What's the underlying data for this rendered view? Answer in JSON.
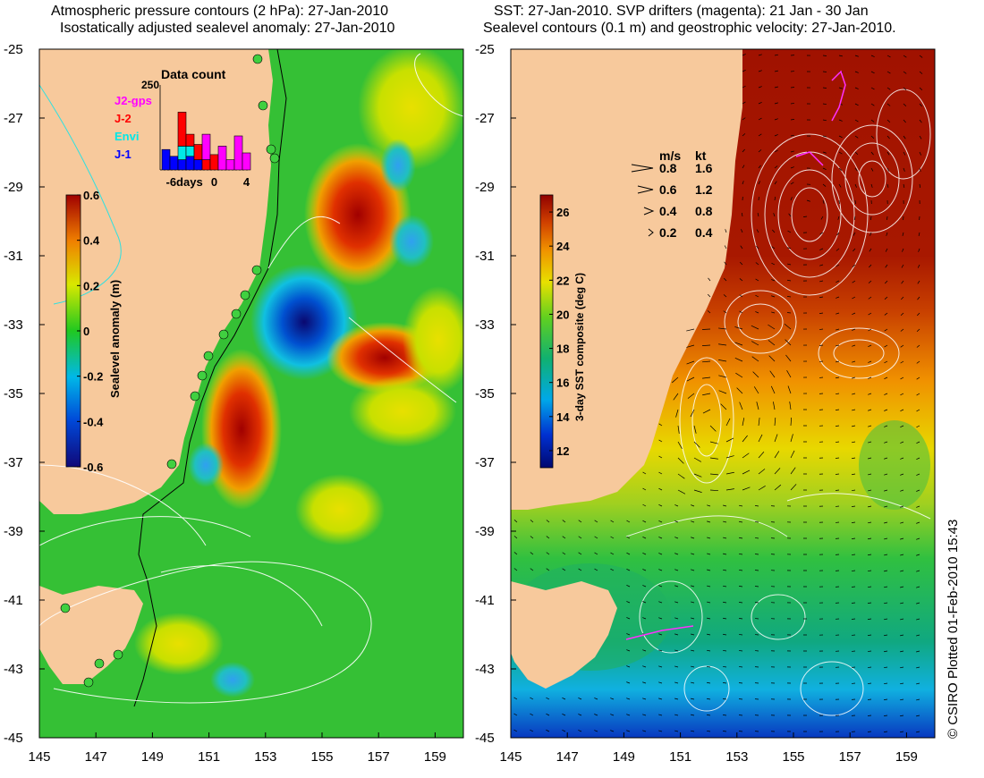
{
  "left_panel": {
    "title_line1": "Atmospheric pressure contours (2 hPa): 27-Jan-2010",
    "title_line2": "Isostatically adjusted sealevel anomaly: 27-Jan-2010",
    "colorbar_label": "Sealevel anomaly (m)",
    "colorbar_ticks": [
      "0.6",
      "0.4",
      "0.2",
      "0",
      "-0.2",
      "-0.4",
      "-0.6"
    ],
    "inset": {
      "title": "Data count",
      "ymax_label": "250",
      "legend": [
        {
          "label": "J2-gps",
          "color": "#ff00ff"
        },
        {
          "label": "J-2",
          "color": "#ff0000"
        },
        {
          "label": "Envi",
          "color": "#00e8e8"
        },
        {
          "label": "J-1",
          "color": "#0000ff"
        }
      ],
      "xtick_labels": [
        "-6days",
        "0",
        "4"
      ]
    }
  },
  "right_panel": {
    "title_line1": "SST: 27-Jan-2010. SVP drifters (magenta): 21 Jan - 30 Jan",
    "title_line2": "Sealevel contours (0.1 m) and geostrophic velocity: 27-Jan-2010.",
    "colorbar_label": "3-day SST composite (deg C)",
    "colorbar_ticks": [
      "26",
      "24",
      "22",
      "20",
      "18",
      "16",
      "14",
      "12"
    ],
    "speed_legend": {
      "header_ms": "m/s",
      "header_kt": "kt",
      "rows": [
        {
          "ms": "0.8",
          "kt": "1.6"
        },
        {
          "ms": "0.6",
          "kt": "1.2"
        },
        {
          "ms": "0.4",
          "kt": "0.8"
        },
        {
          "ms": "0.2",
          "kt": "0.4"
        }
      ]
    }
  },
  "axes": {
    "lat_labels": [
      "-25",
      "-27",
      "-29",
      "-31",
      "-33",
      "-35",
      "-37",
      "-39",
      "-41",
      "-43",
      "-45"
    ],
    "lon_labels": [
      "145",
      "147",
      "149",
      "151",
      "153",
      "155",
      "157",
      "159"
    ]
  },
  "credit": "© CSIRO Plotted 01-Feb-2010 15:43",
  "colors": {
    "land": "#f7c99c",
    "sla_green": "#35c035",
    "sst_red": "#a01200"
  },
  "chart_data": [
    {
      "type": "heatmap",
      "title": "Atmospheric pressure contours (2 hPa): 27-Jan-2010 / Isostatically adjusted sealevel anomaly: 27-Jan-2010",
      "variable": "Sealevel anomaly (m)",
      "xlim": [
        145,
        160
      ],
      "ylim": [
        -45,
        -25
      ],
      "clim": [
        -0.6,
        0.6
      ],
      "x_ticks": [
        145,
        147,
        149,
        151,
        153,
        155,
        157,
        159
      ],
      "y_ticks": [
        -25,
        -27,
        -29,
        -31,
        -33,
        -35,
        -37,
        -39,
        -41,
        -43,
        -45
      ],
      "features": [
        {
          "lon": 156.1,
          "lat": -30.0,
          "value": 0.45
        },
        {
          "lon": 153.9,
          "lat": -32.9,
          "value": -0.55
        },
        {
          "lon": 151.8,
          "lat": -35.8,
          "value": 0.5
        },
        {
          "lon": 157.0,
          "lat": -33.9,
          "value": 0.3
        },
        {
          "lon": 158.3,
          "lat": -30.7,
          "value": -0.2
        },
        {
          "lon": 156.8,
          "lat": -27.7,
          "value": -0.15
        },
        {
          "lon": 150.5,
          "lat": -38.5,
          "value": 0.2
        },
        {
          "lon": 152.5,
          "lat": -38.2,
          "value": 0.1
        },
        {
          "lon": 152.0,
          "lat": -41.5,
          "value": 0.15
        },
        {
          "lon": 155.7,
          "lat": -35.8,
          "value": 0.15
        },
        {
          "lon": 151.3,
          "lat": -37.3,
          "value": -0.1
        }
      ]
    },
    {
      "type": "bar",
      "title": "Data count",
      "x": [
        -6,
        -5,
        -4,
        -3,
        -2,
        -1,
        0,
        1,
        2,
        3,
        4
      ],
      "ylim": [
        0,
        250
      ],
      "series": [
        {
          "name": "J-1",
          "values": [
            60,
            40,
            30,
            40,
            30,
            0,
            0,
            0,
            0,
            0,
            0
          ]
        },
        {
          "name": "Envi",
          "values": [
            0,
            0,
            40,
            30,
            0,
            0,
            0,
            0,
            0,
            0,
            0
          ]
        },
        {
          "name": "J-2",
          "values": [
            0,
            0,
            100,
            35,
            45,
            30,
            45,
            0,
            0,
            0,
            0
          ]
        },
        {
          "name": "J2-gps",
          "values": [
            0,
            0,
            0,
            0,
            0,
            75,
            0,
            70,
            30,
            100,
            50
          ]
        }
      ]
    },
    {
      "type": "heatmap",
      "title": "SST: 27-Jan-2010. SVP drifters (magenta): 21 Jan - 30 Jan / Sealevel contours (0.1 m) and geostrophic velocity: 27-Jan-2010.",
      "variable": "3-day SST composite (deg C)",
      "xlim": [
        145,
        160
      ],
      "ylim": [
        -45,
        -25
      ],
      "clim": [
        11,
        27
      ],
      "x_ticks": [
        145,
        147,
        149,
        151,
        153,
        155,
        157,
        159
      ],
      "y_ticks": [
        -25,
        -27,
        -29,
        -31,
        -33,
        -35,
        -37,
        -39,
        -41,
        -43,
        -45
      ],
      "features": [
        {
          "lon": 157.0,
          "lat": -27.0,
          "value": 26.5
        },
        {
          "lon": 156.5,
          "lat": -30.0,
          "value": 26
        },
        {
          "lon": 155.0,
          "lat": -33.0,
          "value": 24
        },
        {
          "lon": 155.0,
          "lat": -35.5,
          "value": 22.5
        },
        {
          "lon": 155.0,
          "lat": -38.0,
          "value": 20.5
        },
        {
          "lon": 153.0,
          "lat": -40.5,
          "value": 18.5
        },
        {
          "lon": 153.0,
          "lat": -42.5,
          "value": 17
        },
        {
          "lon": 151.5,
          "lat": -44.5,
          "value": 14
        },
        {
          "lon": 158.0,
          "lat": -43.5,
          "value": 15.5
        }
      ]
    }
  ]
}
